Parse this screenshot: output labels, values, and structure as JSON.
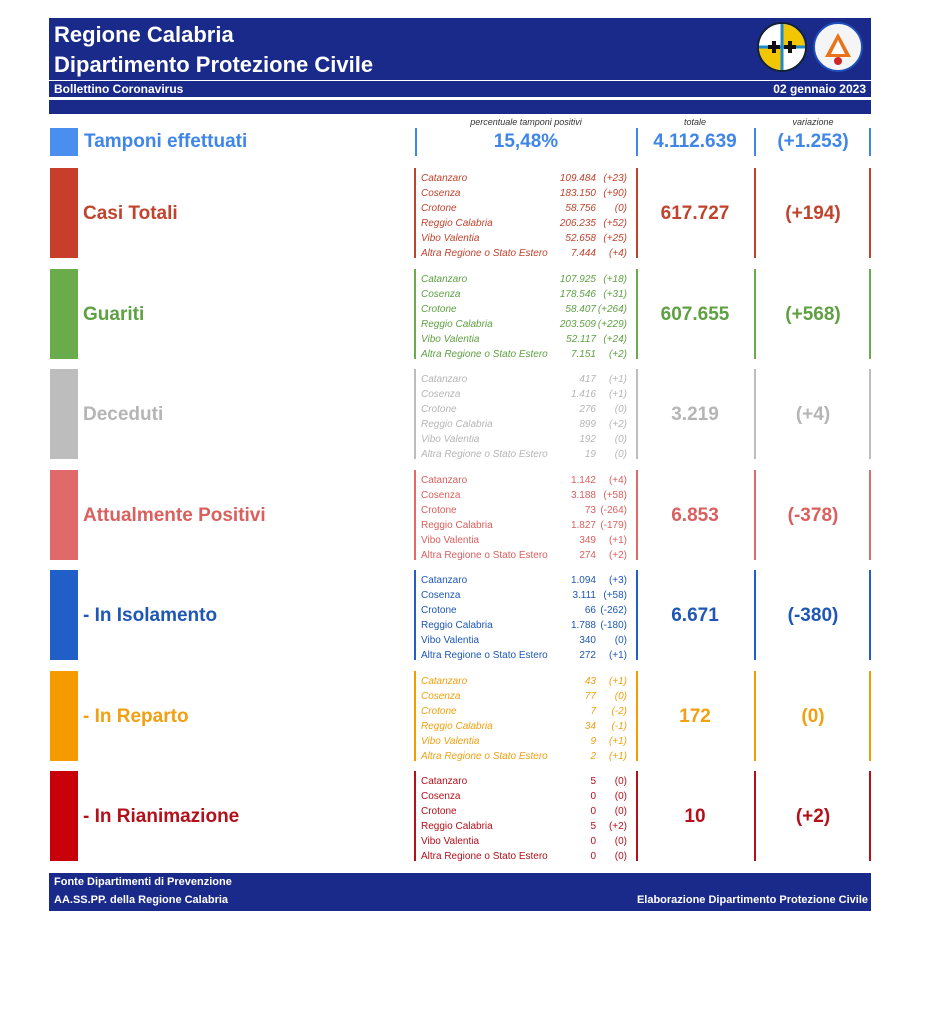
{
  "header": {
    "title_line1": "Regione Calabria",
    "title_line2": "Dipartimento Protezione Civile",
    "subtitle": "Bollettino Coronavirus",
    "date": "02 gennaio 2023"
  },
  "column_headers": {
    "percent": "percentuale tamponi positivi",
    "total": "totale",
    "variation": "variazione"
  },
  "tamponi": {
    "label": "Tamponi effettuati",
    "percent": "15,48%",
    "total": "4.112.639",
    "variation": "(+1.253)",
    "color": "#3f86e8"
  },
  "sections": [
    {
      "label": "Casi Totali",
      "color": "#c73f2a",
      "text_color": "#c0432e",
      "line_color": "#c0432e",
      "total": "617.727",
      "variation": "(+194)",
      "rows": [
        {
          "province": "Catanzaro",
          "value": "109.484",
          "delta": "(+23)"
        },
        {
          "province": "Cosenza",
          "value": "183.150",
          "delta": "(+90)"
        },
        {
          "province": "Crotone",
          "value": "58.756",
          "delta": "(0)"
        },
        {
          "province": "Reggio Calabria",
          "value": "206.235",
          "delta": "(+52)"
        },
        {
          "province": "Vibo Valentia",
          "value": "52.658",
          "delta": "(+25)"
        },
        {
          "province": "Altra Regione o Stato Estero",
          "value": "7.444",
          "delta": "(+4)"
        }
      ]
    },
    {
      "label": "Guariti",
      "color": "#6aab4c",
      "text_color": "#5fa043",
      "line_color": "#6aab4c",
      "total": "607.655",
      "variation": "(+568)",
      "rows": [
        {
          "province": "Catanzaro",
          "value": "107.925",
          "delta": "(+18)"
        },
        {
          "province": "Cosenza",
          "value": "178.546",
          "delta": "(+31)"
        },
        {
          "province": "Crotone",
          "value": "58.407",
          "delta": "(+264)"
        },
        {
          "province": "Reggio Calabria",
          "value": "203.509",
          "delta": "(+229)"
        },
        {
          "province": "Vibo Valentia",
          "value": "52.117",
          "delta": "(+24)"
        },
        {
          "province": "Altra Regione o Stato Estero",
          "value": "7.151",
          "delta": "(+2)"
        }
      ]
    },
    {
      "label": "Deceduti",
      "color": "#bdbdbd",
      "text_color": "#b5b5b5",
      "line_color": "#bdbdbd",
      "total": "3.219",
      "variation": "(+4)",
      "rows": [
        {
          "province": "Catanzaro",
          "value": "417",
          "delta": "(+1)"
        },
        {
          "province": "Cosenza",
          "value": "1.416",
          "delta": "(+1)"
        },
        {
          "province": "Crotone",
          "value": "276",
          "delta": "(0)"
        },
        {
          "province": "Reggio Calabria",
          "value": "899",
          "delta": "(+2)"
        },
        {
          "province": "Vibo Valentia",
          "value": "192",
          "delta": "(0)"
        },
        {
          "province": "Altra Regione o Stato Estero",
          "value": "19",
          "delta": "(0)"
        }
      ]
    },
    {
      "label": "Attualmente Positivi",
      "color": "#e06a6a",
      "text_color": "#d9605f",
      "line_color": "#e06a6a",
      "total": "6.853",
      "variation": "(-378)",
      "rows": [
        {
          "province": "Catanzaro",
          "value": "1.142",
          "delta": "(+4)"
        },
        {
          "province": "Cosenza",
          "value": "3.188",
          "delta": "(+58)"
        },
        {
          "province": "Crotone",
          "value": "73",
          "delta": "(-264)"
        },
        {
          "province": "Reggio Calabria",
          "value": "1.827",
          "delta": "(-179)"
        },
        {
          "province": "Vibo Valentia",
          "value": "349",
          "delta": "(+1)"
        },
        {
          "province": "Altra Regione o Stato Estero",
          "value": "274",
          "delta": "(+2)"
        }
      ]
    },
    {
      "label": "- In Isolamento",
      "color": "#1f5fc7",
      "text_color": "#1e57b5",
      "line_color": "#1f5fc7",
      "total": "6.671",
      "variation": "(-380)",
      "rows": [
        {
          "province": "Catanzaro",
          "value": "1.094",
          "delta": "(+3)"
        },
        {
          "province": "Cosenza",
          "value": "3.111",
          "delta": "(+58)"
        },
        {
          "province": "Crotone",
          "value": "66",
          "delta": "(-262)"
        },
        {
          "province": "Reggio Calabria",
          "value": "1.788",
          "delta": "(-180)"
        },
        {
          "province": "Vibo Valentia",
          "value": "340",
          "delta": "(0)"
        },
        {
          "province": "Altra Regione o Stato Estero",
          "value": "272",
          "delta": "(+1)"
        }
      ]
    },
    {
      "label": "- In Reparto",
      "color": "#f59b00",
      "text_color": "#f0a010",
      "line_color": "#f59b00",
      "total": "172",
      "variation": "(0)",
      "rows": [
        {
          "province": "Catanzaro",
          "value": "43",
          "delta": "(+1)"
        },
        {
          "province": "Cosenza",
          "value": "77",
          "delta": "(0)"
        },
        {
          "province": "Crotone",
          "value": "7",
          "delta": "(-2)"
        },
        {
          "province": "Reggio Calabria",
          "value": "34",
          "delta": "(-1)"
        },
        {
          "province": "Vibo Valentia",
          "value": "9",
          "delta": "(+1)"
        },
        {
          "province": "Altra Regione o Stato Estero",
          "value": "2",
          "delta": "(+1)"
        }
      ]
    },
    {
      "label": "- In Rianimazione",
      "color": "#c8000a",
      "text_color": "#b2101a",
      "line_color": "#b2101a",
      "total": "10",
      "variation": "(+2)",
      "rows": [
        {
          "province": "Catanzaro",
          "value": "5",
          "delta": "(0)"
        },
        {
          "province": "Cosenza",
          "value": "0",
          "delta": "(0)"
        },
        {
          "province": "Crotone",
          "value": "0",
          "delta": "(0)"
        },
        {
          "province": "Reggio Calabria",
          "value": "5",
          "delta": "(+2)"
        },
        {
          "province": "Vibo Valentia",
          "value": "0",
          "delta": "(0)"
        },
        {
          "province": "Altra Regione o Stato Estero",
          "value": "0",
          "delta": "(0)"
        }
      ]
    }
  ],
  "footer": {
    "source_line1": "Fonte Dipartimenti di Prevenzione",
    "source_line2": "AA.SS.PP.  della Regione Calabria",
    "elaboration": "Elaborazione Dipartimento Protezione Civile"
  }
}
